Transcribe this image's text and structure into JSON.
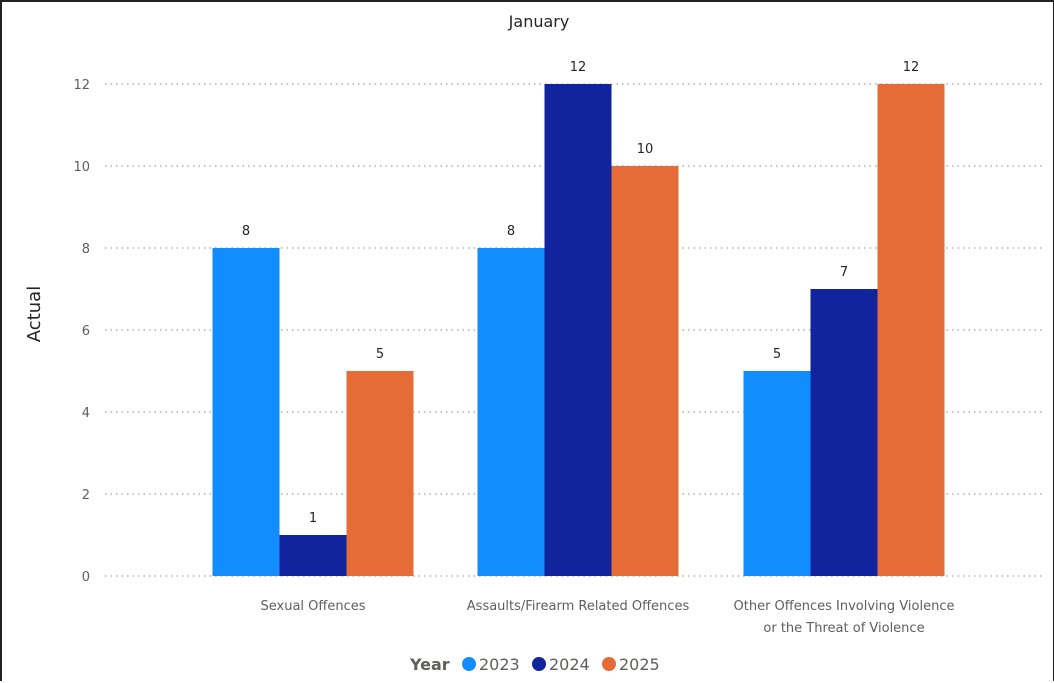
{
  "chart_data": {
    "type": "bar",
    "title": "January",
    "xlabel": "",
    "ylabel": "Actual",
    "ylim": [
      0,
      12
    ],
    "yticks": [
      0,
      2,
      4,
      6,
      8,
      10,
      12
    ],
    "grid": true,
    "legend_placement": "bottom-center",
    "legend_title": "Year",
    "categories": [
      [
        "Sexual Offences"
      ],
      [
        "Assaults/Firearm Related Offences"
      ],
      [
        "Other Offences Involving Violence",
        "or the Threat of Violence"
      ]
    ],
    "series": [
      {
        "name": "2023",
        "color": "#118dff",
        "values": [
          8,
          8,
          5
        ]
      },
      {
        "name": "2024",
        "color": "#12239e",
        "values": [
          1,
          12,
          7
        ]
      },
      {
        "name": "2025",
        "color": "#e66c37",
        "values": [
          5,
          10,
          12
        ]
      }
    ]
  }
}
